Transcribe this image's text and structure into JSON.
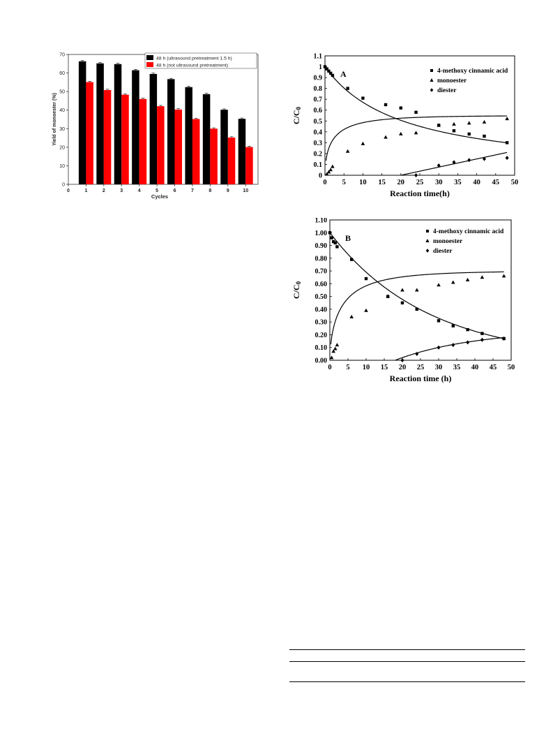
{
  "chart_data": [
    {
      "id": "bar",
      "type": "bar",
      "title": "",
      "xlabel": "Cycles",
      "ylabel": "Yield of monoester (%)",
      "ylim": [
        0,
        70
      ],
      "xlim": [
        0,
        10.7
      ],
      "yticks": [
        "0",
        "10",
        "20",
        "30",
        "40",
        "50",
        "60",
        "70"
      ],
      "xticks": [
        "0",
        "1",
        "2",
        "3",
        "4",
        "5",
        "6",
        "7",
        "8",
        "9",
        "10"
      ],
      "categories": [
        "1",
        "2",
        "3",
        "4",
        "5",
        "6",
        "7",
        "8",
        "9",
        "10"
      ],
      "legend_position": "top-right",
      "series": [
        {
          "name": "48 h (ultrasound pretreatment 1.5 h)",
          "color": "#000000",
          "values": [
            66.3,
            65.2,
            64.8,
            61.5,
            59.5,
            56.7,
            52.4,
            48.6,
            40.2,
            35.3
          ]
        },
        {
          "name": "48 h (not ultrasound pretreatment)",
          "color": "#ff0000",
          "values": [
            55.1,
            50.8,
            48.3,
            46.0,
            42.1,
            40.3,
            35.2,
            30.0,
            25.2,
            20.1
          ]
        }
      ]
    },
    {
      "id": "a",
      "type": "scatter",
      "panel_label": "A",
      "xlabel": "Reaction time(h)",
      "ylabel": "C/C0",
      "xlim": [
        0,
        50
      ],
      "ylim": [
        0,
        1.1
      ],
      "xticks": [
        "0",
        "5",
        "10",
        "15",
        "20",
        "25",
        "30",
        "35",
        "40",
        "45",
        "50"
      ],
      "yticks": [
        "0",
        "0.1",
        "0.2",
        "0.3",
        "0.4",
        "0.5",
        "0.6",
        "0.7",
        "0.8",
        "0.9",
        "1",
        "1.1"
      ],
      "legend_position": "top-right",
      "series": [
        {
          "name": "4-methoxy cinnamic acid",
          "marker": "square",
          "x": [
            0,
            0.5,
            1,
            1.5,
            2,
            6,
            10,
            16,
            20,
            24,
            30,
            34,
            38,
            42,
            48
          ],
          "y": [
            1.0,
            0.98,
            0.96,
            0.94,
            0.92,
            0.8,
            0.71,
            0.65,
            0.62,
            0.58,
            0.46,
            0.41,
            0.38,
            0.36,
            0.3
          ]
        },
        {
          "name": "monoester",
          "marker": "triangle",
          "x": [
            0.5,
            1,
            1.5,
            2,
            6,
            10,
            16,
            20,
            24,
            30,
            34,
            38,
            42,
            48
          ],
          "y": [
            0.01,
            0.03,
            0.05,
            0.08,
            0.22,
            0.29,
            0.35,
            0.38,
            0.39,
            0.46,
            0.47,
            0.48,
            0.49,
            0.52
          ]
        },
        {
          "name": "diester",
          "marker": "diamond",
          "x": [
            24,
            30,
            34,
            38,
            42,
            48
          ],
          "y": [
            0.0,
            0.09,
            0.12,
            0.14,
            0.15,
            0.16
          ]
        }
      ]
    },
    {
      "id": "b",
      "type": "scatter",
      "panel_label": "B",
      "xlabel": "Reaction time (h)",
      "ylabel": "C/C0",
      "xlim": [
        0,
        50
      ],
      "ylim": [
        0,
        1.1
      ],
      "xticks": [
        "0",
        "5",
        "10",
        "15",
        "20",
        "25",
        "30",
        "35",
        "40",
        "45",
        "50"
      ],
      "yticks": [
        "0.00",
        "0.10",
        "0.20",
        "0.30",
        "0.40",
        "0.50",
        "0.60",
        "0.70",
        "0.80",
        "0.90",
        "1.00",
        "1.10"
      ],
      "legend_position": "top-right",
      "series": [
        {
          "name": "4-methoxy cinnamic acid",
          "marker": "square",
          "x": [
            0,
            0.5,
            1,
            1.5,
            2,
            6,
            10,
            16,
            20,
            24,
            30,
            34,
            38,
            42,
            48
          ],
          "y": [
            1.0,
            0.96,
            0.93,
            0.92,
            0.89,
            0.79,
            0.64,
            0.5,
            0.45,
            0.4,
            0.31,
            0.27,
            0.24,
            0.21,
            0.17
          ]
        },
        {
          "name": "monoester",
          "marker": "triangle",
          "x": [
            0.5,
            1,
            1.5,
            2,
            6,
            10,
            16,
            20,
            24,
            30,
            34,
            38,
            42,
            48
          ],
          "y": [
            0.02,
            0.07,
            0.09,
            0.12,
            0.34,
            0.39,
            0.5,
            0.55,
            0.55,
            0.59,
            0.61,
            0.63,
            0.65,
            0.66
          ]
        },
        {
          "name": "diester",
          "marker": "diamond",
          "x": [
            20,
            24,
            30,
            34,
            38,
            42,
            48
          ],
          "y": [
            0.0,
            0.05,
            0.1,
            0.12,
            0.14,
            0.16,
            0.17
          ]
        }
      ]
    }
  ]
}
